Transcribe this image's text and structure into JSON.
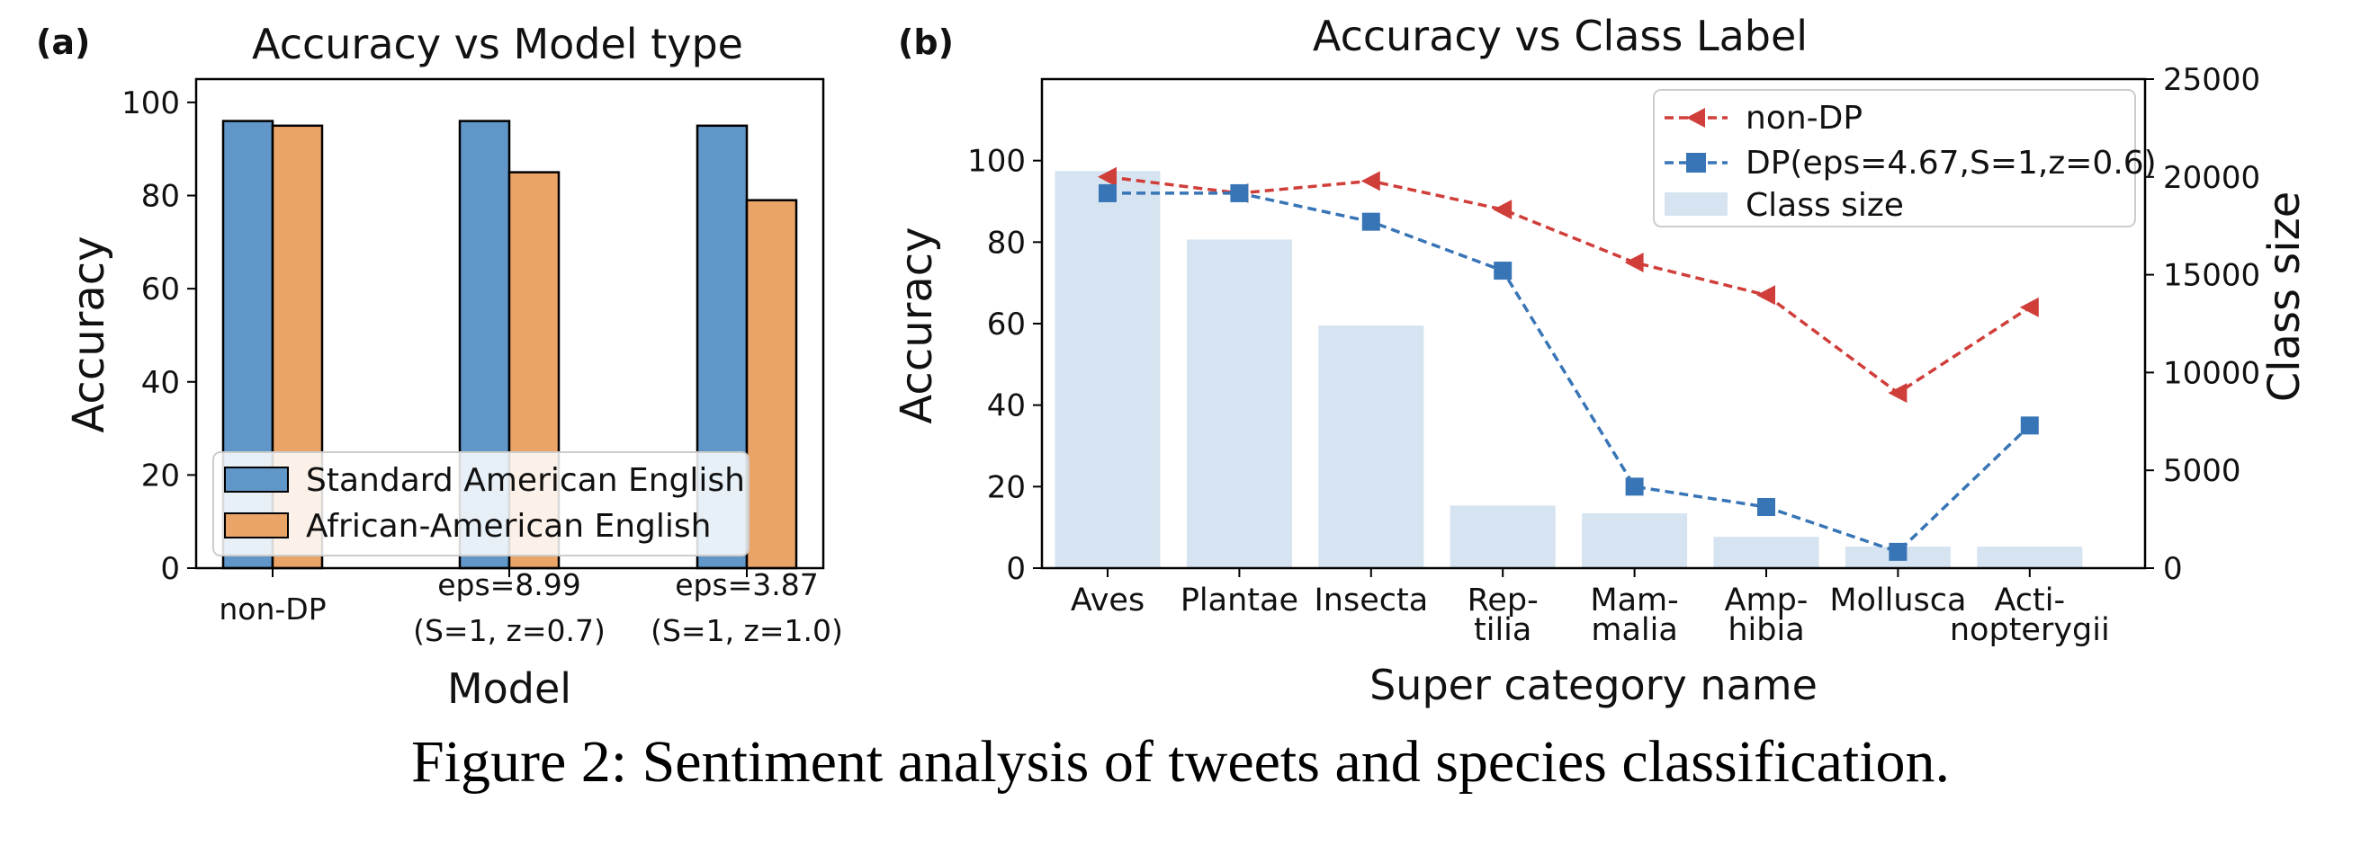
{
  "caption": "Figure 2: Sentiment analysis of tweets and species classification.",
  "chart_data": [
    {
      "panel_label": "(a)",
      "type": "bar",
      "title": "Accuracy vs Model type",
      "xlabel": "Model",
      "ylabel": "Accuracy",
      "ylim": [
        0,
        105
      ],
      "yticks": [
        0,
        20,
        40,
        60,
        80,
        100
      ],
      "categories": [
        [
          "non-DP"
        ],
        [
          "eps=8.99",
          "(S=1, z=0.7)"
        ],
        [
          "eps=3.87",
          "(S=1, z=1.0)"
        ]
      ],
      "series": [
        {
          "name": "Standard American English",
          "color": "#6096c8",
          "values": [
            96,
            96,
            95
          ]
        },
        {
          "name": "African-American English",
          "color": "#eba468",
          "values": [
            95,
            85,
            79
          ]
        }
      ],
      "legend": "lower-left",
      "grid": false
    },
    {
      "panel_label": "(b)",
      "type": "bar+line",
      "title": "Accuracy vs Class Label",
      "xlabel": "Super category name",
      "ylabel": "Accuracy",
      "y2label": "Class size",
      "ylim": [
        0,
        120
      ],
      "y2lim": [
        0,
        25000
      ],
      "yticks": [
        0,
        20,
        40,
        60,
        80,
        100
      ],
      "y2ticks": [
        0,
        5000,
        10000,
        15000,
        20000,
        25000
      ],
      "categories": [
        [
          "Aves"
        ],
        [
          "Plantae"
        ],
        [
          "Insecta"
        ],
        [
          "Rep-",
          "tilia"
        ],
        [
          "Mam-",
          "malia"
        ],
        [
          "Amp-",
          "hibia"
        ],
        [
          "Mollusca"
        ],
        [
          "Acti-",
          "nopterygii"
        ]
      ],
      "lines": [
        {
          "name": "non-DP",
          "color": "#d03e3a",
          "marker": "triangle-left",
          "values": [
            96,
            92,
            95,
            88,
            75,
            67,
            43,
            64
          ]
        },
        {
          "name": "DP(eps=4.67,S=1,z=0.6)",
          "color": "#3875b6",
          "marker": "square",
          "values": [
            92,
            92,
            85,
            73,
            20,
            15,
            4,
            35
          ]
        }
      ],
      "bars": {
        "name": "Class size",
        "color": "#d6e3f0",
        "values": [
          20300,
          16800,
          12400,
          3200,
          2800,
          1600,
          1100,
          1100
        ]
      },
      "legend": "upper-right",
      "grid": false
    }
  ]
}
